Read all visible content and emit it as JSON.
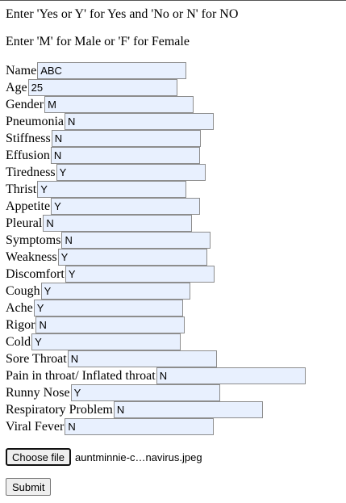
{
  "instructions": {
    "yes_no": "Enter 'Yes or Y' for Yes and 'No or N' for NO",
    "gender": "Enter 'M' for Male or 'F' for Female"
  },
  "form": {
    "fields": [
      {
        "label": "Name",
        "value": "ABC"
      },
      {
        "label": "Age",
        "value": "25"
      },
      {
        "label": "Gender",
        "value": "M"
      },
      {
        "label": "Pneumonia",
        "value": "N"
      },
      {
        "label": "Stiffness",
        "value": "N"
      },
      {
        "label": "Effusion",
        "value": "N"
      },
      {
        "label": "Tiredness",
        "value": "Y"
      },
      {
        "label": "Thrist",
        "value": "Y"
      },
      {
        "label": "Appetite",
        "value": "Y"
      },
      {
        "label": "Pleural",
        "value": "N"
      },
      {
        "label": "Symptoms",
        "value": "N"
      },
      {
        "label": "Weakness",
        "value": "Y"
      },
      {
        "label": "Discomfort",
        "value": "Y"
      },
      {
        "label": "Cough",
        "value": "Y"
      },
      {
        "label": "Ache",
        "value": "Y"
      },
      {
        "label": "Rigor",
        "value": "N"
      },
      {
        "label": "Cold",
        "value": "Y"
      },
      {
        "label": "Sore Throat",
        "value": "N"
      },
      {
        "label": "Pain in throat/ Inflated throat",
        "value": "N"
      },
      {
        "label": "Runny Nose",
        "value": "Y"
      },
      {
        "label": "Respiratory Problem",
        "value": "N"
      },
      {
        "label": "Viral Fever",
        "value": "N"
      }
    ],
    "file": {
      "button_label": "Choose file",
      "file_name": "auntminnie-c…navirus.jpeg"
    },
    "submit_label": "Submit"
  }
}
